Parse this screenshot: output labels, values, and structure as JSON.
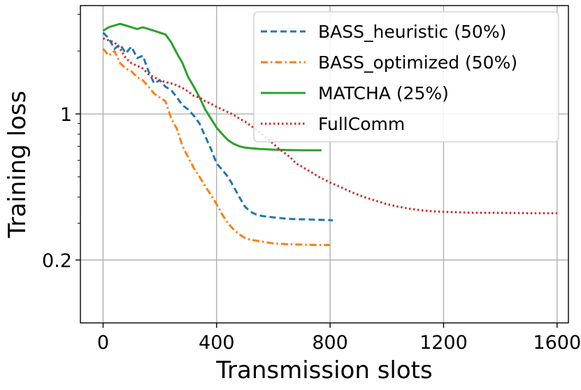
{
  "chart_data": {
    "type": "line",
    "title": "",
    "xlabel": "Transmission slots",
    "ylabel": "Training loss",
    "xlim": [
      -80,
      1640
    ],
    "ylim": [
      0.1,
      3.3
    ],
    "yscale": "log",
    "x_ticks": [
      0,
      400,
      800,
      1200,
      1600
    ],
    "x_tick_labels": [
      "0",
      "400",
      "800",
      "1200",
      "1600"
    ],
    "y_ticks": [
      0.2,
      1
    ],
    "y_tick_labels": [
      "0.2",
      "1"
    ],
    "grid": true,
    "legend_position": "top-right",
    "series": [
      {
        "name": "BASS_heuristic (50%)",
        "color": "#1f77b4",
        "dash": "dashed",
        "points": [
          [
            0,
            2.45
          ],
          [
            20,
            2.3
          ],
          [
            40,
            2.05
          ],
          [
            60,
            2.15
          ],
          [
            80,
            1.95
          ],
          [
            100,
            2.1
          ],
          [
            120,
            1.85
          ],
          [
            140,
            1.9
          ],
          [
            160,
            1.6
          ],
          [
            180,
            1.4
          ],
          [
            200,
            1.45
          ],
          [
            220,
            1.35
          ],
          [
            240,
            1.3
          ],
          [
            260,
            1.2
          ],
          [
            280,
            1.1
          ],
          [
            300,
            1.05
          ],
          [
            320,
            0.98
          ],
          [
            340,
            0.9
          ],
          [
            360,
            0.78
          ],
          [
            380,
            0.68
          ],
          [
            400,
            0.58
          ],
          [
            420,
            0.54
          ],
          [
            440,
            0.5
          ],
          [
            460,
            0.45
          ],
          [
            480,
            0.4
          ],
          [
            500,
            0.36
          ],
          [
            520,
            0.34
          ],
          [
            540,
            0.33
          ],
          [
            560,
            0.325
          ],
          [
            600,
            0.32
          ],
          [
            650,
            0.315
          ],
          [
            700,
            0.313
          ],
          [
            750,
            0.312
          ],
          [
            810,
            0.31
          ]
        ]
      },
      {
        "name": "BASS_optimized (50%)",
        "color": "#ff7f0e",
        "dash": "dashdot",
        "points": [
          [
            0,
            2.05
          ],
          [
            20,
            1.9
          ],
          [
            40,
            2.0
          ],
          [
            60,
            1.75
          ],
          [
            80,
            1.65
          ],
          [
            100,
            1.6
          ],
          [
            120,
            1.5
          ],
          [
            140,
            1.45
          ],
          [
            160,
            1.35
          ],
          [
            180,
            1.25
          ],
          [
            200,
            1.2
          ],
          [
            220,
            1.15
          ],
          [
            240,
            0.95
          ],
          [
            260,
            0.85
          ],
          [
            280,
            0.7
          ],
          [
            300,
            0.62
          ],
          [
            320,
            0.55
          ],
          [
            340,
            0.5
          ],
          [
            360,
            0.45
          ],
          [
            380,
            0.41
          ],
          [
            400,
            0.37
          ],
          [
            420,
            0.33
          ],
          [
            440,
            0.3
          ],
          [
            460,
            0.28
          ],
          [
            480,
            0.265
          ],
          [
            500,
            0.255
          ],
          [
            520,
            0.25
          ],
          [
            560,
            0.245
          ],
          [
            600,
            0.24
          ],
          [
            650,
            0.238
          ],
          [
            700,
            0.237
          ],
          [
            750,
            0.236
          ],
          [
            800,
            0.236
          ]
        ]
      },
      {
        "name": "MATCHA (25%)",
        "color": "#2ca02c",
        "dash": "solid",
        "points": [
          [
            0,
            2.5
          ],
          [
            20,
            2.6
          ],
          [
            40,
            2.65
          ],
          [
            60,
            2.7
          ],
          [
            80,
            2.65
          ],
          [
            100,
            2.6
          ],
          [
            120,
            2.55
          ],
          [
            140,
            2.6
          ],
          [
            160,
            2.55
          ],
          [
            180,
            2.5
          ],
          [
            200,
            2.45
          ],
          [
            220,
            2.4
          ],
          [
            240,
            2.2
          ],
          [
            260,
            1.95
          ],
          [
            280,
            1.75
          ],
          [
            300,
            1.5
          ],
          [
            320,
            1.35
          ],
          [
            340,
            1.2
          ],
          [
            360,
            1.05
          ],
          [
            380,
            0.95
          ],
          [
            400,
            0.86
          ],
          [
            420,
            0.8
          ],
          [
            440,
            0.75
          ],
          [
            460,
            0.72
          ],
          [
            480,
            0.7
          ],
          [
            500,
            0.69
          ],
          [
            550,
            0.68
          ],
          [
            600,
            0.675
          ],
          [
            650,
            0.672
          ],
          [
            700,
            0.67
          ],
          [
            770,
            0.67
          ]
        ]
      },
      {
        "name": "FullComm",
        "color": "#d62728",
        "dash": "dotted",
        "points": [
          [
            0,
            2.3
          ],
          [
            20,
            2.25
          ],
          [
            40,
            2.2
          ],
          [
            60,
            2.05
          ],
          [
            80,
            1.85
          ],
          [
            100,
            1.75
          ],
          [
            120,
            1.7
          ],
          [
            140,
            1.65
          ],
          [
            160,
            1.55
          ],
          [
            180,
            1.5
          ],
          [
            200,
            1.45
          ],
          [
            220,
            1.42
          ],
          [
            240,
            1.4
          ],
          [
            260,
            1.37
          ],
          [
            280,
            1.33
          ],
          [
            300,
            1.28
          ],
          [
            320,
            1.22
          ],
          [
            340,
            1.2
          ],
          [
            360,
            1.15
          ],
          [
            380,
            1.12
          ],
          [
            400,
            1.08
          ],
          [
            420,
            1.05
          ],
          [
            440,
            1.02
          ],
          [
            460,
            0.99
          ],
          [
            480,
            0.95
          ],
          [
            500,
            0.92
          ],
          [
            520,
            0.88
          ],
          [
            540,
            0.84
          ],
          [
            560,
            0.8
          ],
          [
            580,
            0.76
          ],
          [
            600,
            0.72
          ],
          [
            620,
            0.68
          ],
          [
            640,
            0.65
          ],
          [
            660,
            0.62
          ],
          [
            680,
            0.58
          ],
          [
            700,
            0.56
          ],
          [
            720,
            0.54
          ],
          [
            740,
            0.52
          ],
          [
            760,
            0.5
          ],
          [
            780,
            0.485
          ],
          [
            800,
            0.47
          ],
          [
            840,
            0.445
          ],
          [
            880,
            0.42
          ],
          [
            920,
            0.4
          ],
          [
            960,
            0.385
          ],
          [
            1000,
            0.37
          ],
          [
            1040,
            0.36
          ],
          [
            1080,
            0.352
          ],
          [
            1120,
            0.346
          ],
          [
            1160,
            0.342
          ],
          [
            1200,
            0.34
          ],
          [
            1300,
            0.337
          ],
          [
            1400,
            0.336
          ],
          [
            1500,
            0.335
          ],
          [
            1600,
            0.335
          ]
        ]
      }
    ]
  }
}
